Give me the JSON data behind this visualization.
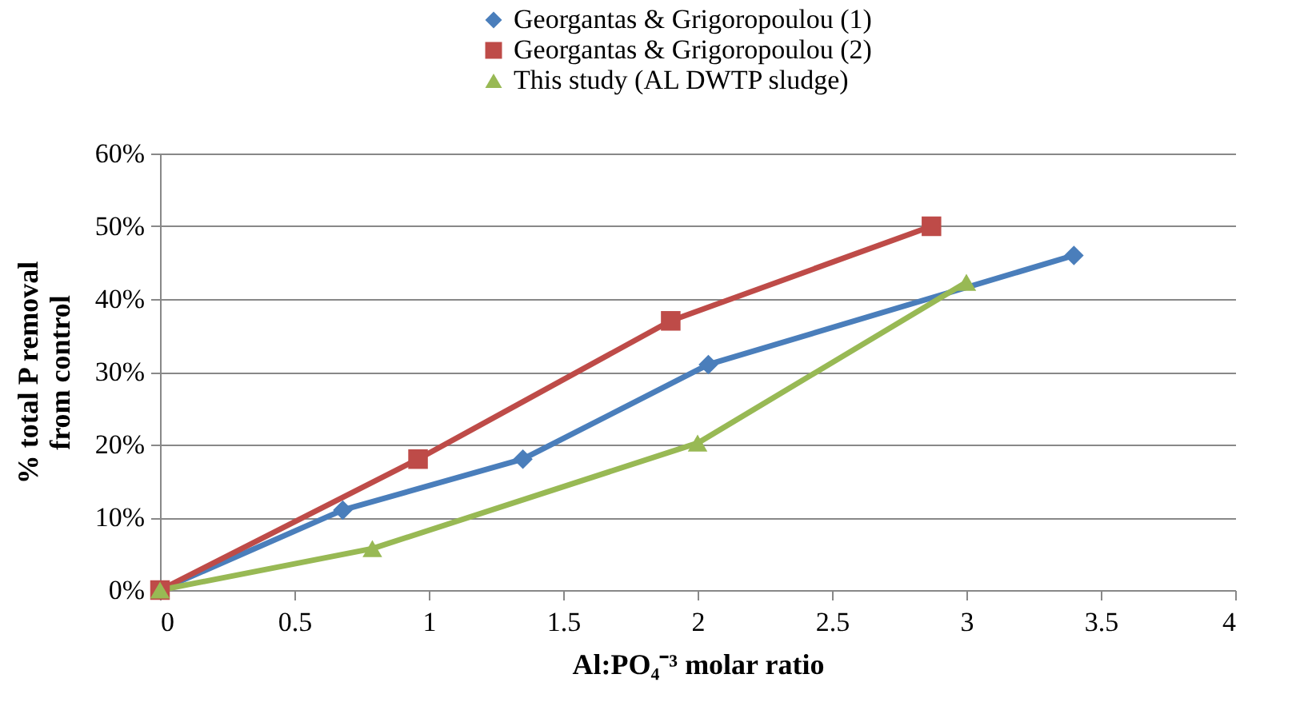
{
  "chart_data": {
    "type": "line",
    "xlabel": "Al:PO₄⁻³ molar ratio",
    "ylabel": "% total P removal from control",
    "xlim": [
      0,
      4
    ],
    "xticks": [
      0,
      0.5,
      1,
      1.5,
      2,
      2.5,
      3,
      3.5,
      4
    ],
    "ylim": [
      0,
      60
    ],
    "yticks": [
      {
        "value": 0,
        "label": "0%"
      },
      {
        "value": 10,
        "label": "10%"
      },
      {
        "value": 20,
        "label": "20%"
      },
      {
        "value": 30,
        "label": "30%"
      },
      {
        "value": 40,
        "label": "40%"
      },
      {
        "value": 50,
        "label": "50%"
      },
      {
        "value": 60,
        "label": "60%"
      }
    ],
    "grid": "y",
    "legend": "top",
    "line_style": "solid",
    "series": [
      {
        "name": "Georgantas & Grigoropoulou (1)",
        "color": "#4a7ebb",
        "marker": "diamond",
        "x": [
          0,
          0.68,
          1.35,
          2.04,
          3.4
        ],
        "values": [
          0,
          11,
          18,
          31,
          46
        ]
      },
      {
        "name": "Georgantas & Grigoropoulou (2)",
        "color": "#be4b48",
        "marker": "square",
        "x": [
          0,
          0.96,
          1.9,
          2.87
        ],
        "values": [
          0,
          18,
          37,
          50
        ]
      },
      {
        "name": "This study (AL DWTP sludge)",
        "color": "#98b954",
        "marker": "triangle",
        "x": [
          0,
          0.79,
          2.0,
          3.0
        ],
        "values": [
          0,
          5.7,
          20.2,
          42.3
        ]
      }
    ]
  }
}
